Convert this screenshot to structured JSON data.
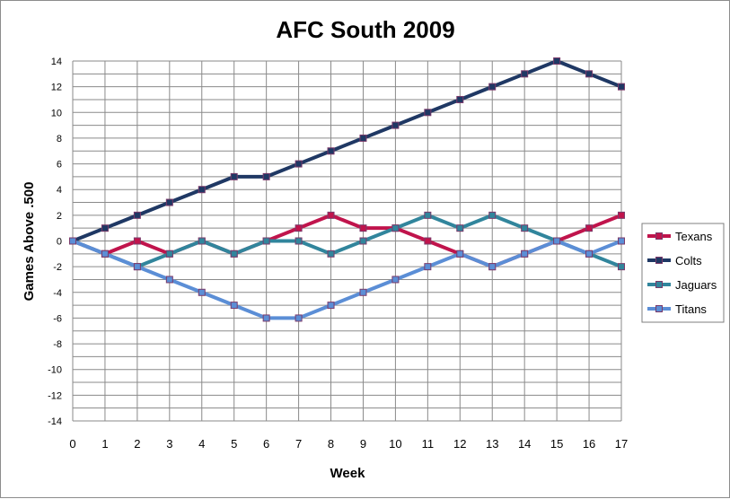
{
  "chart_data": {
    "type": "line",
    "title": "AFC South 2009",
    "xlabel": "Week",
    "ylabel": "Games Above .500",
    "x": [
      0,
      1,
      2,
      3,
      4,
      5,
      6,
      7,
      8,
      9,
      10,
      11,
      12,
      13,
      14,
      15,
      16,
      17
    ],
    "xlim": [
      0,
      17
    ],
    "ylim": [
      -14,
      14
    ],
    "yticks": [
      14,
      12,
      10,
      8,
      6,
      4,
      2,
      0,
      -2,
      -4,
      -6,
      -8,
      -10,
      -12,
      -14
    ],
    "grid": true,
    "legend_position": "right",
    "series": [
      {
        "name": "Texans",
        "color": "#c0144c",
        "values": [
          0,
          -1,
          0,
          -1,
          0,
          -1,
          0,
          1,
          2,
          1,
          1,
          0,
          -1,
          -2,
          -1,
          0,
          1,
          2
        ]
      },
      {
        "name": "Colts",
        "color": "#1f3864",
        "values": [
          0,
          1,
          2,
          3,
          4,
          5,
          5,
          6,
          7,
          8,
          9,
          10,
          11,
          12,
          13,
          14,
          13,
          12
        ]
      },
      {
        "name": "Jaguars",
        "color": "#31859c",
        "values": [
          0,
          -1,
          -2,
          -1,
          0,
          -1,
          0,
          0,
          -1,
          0,
          1,
          2,
          1,
          2,
          1,
          0,
          -1,
          -2
        ]
      },
      {
        "name": "Titans",
        "color": "#5b8ed6",
        "values": [
          0,
          -1,
          -2,
          -3,
          -4,
          -5,
          -6,
          -6,
          -5,
          -4,
          -3,
          -2,
          -1,
          -2,
          -1,
          0,
          -1,
          0
        ]
      }
    ]
  }
}
